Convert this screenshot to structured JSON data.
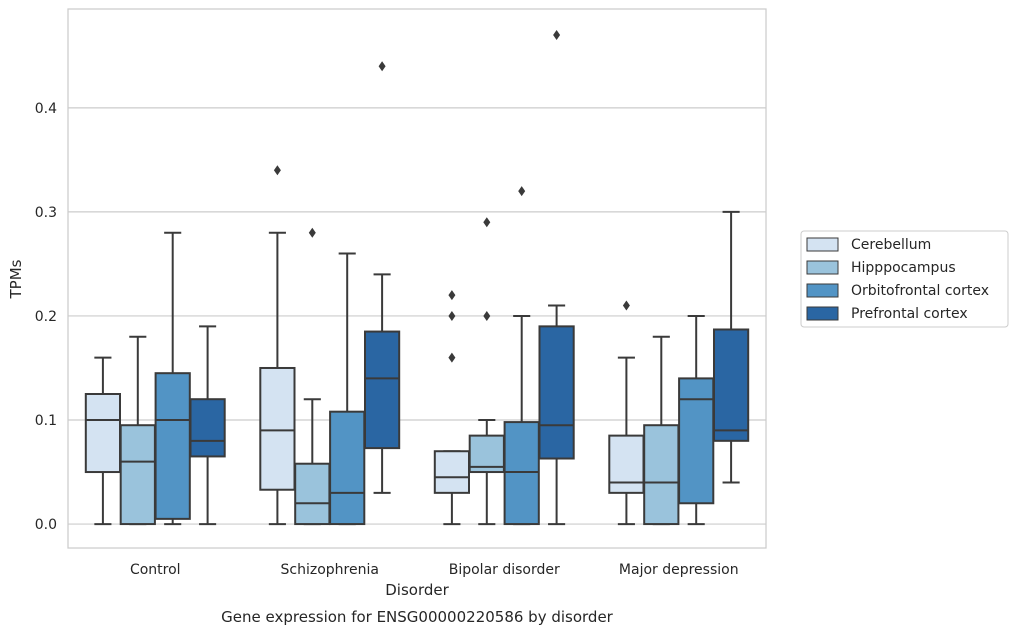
{
  "chart_data": {
    "type": "box",
    "caption": "Gene expression for ENSG00000220586 by disorder",
    "xlabel": "Disorder",
    "ylabel": "TPMs",
    "ylim": [
      -0.023,
      0.495
    ],
    "yticks": [
      0.0,
      0.1,
      0.2,
      0.3,
      0.4
    ],
    "ytick_labels": [
      "0.0",
      "0.1",
      "0.2",
      "0.3",
      "0.4"
    ],
    "grid": "horizontal",
    "legend_placement": "right",
    "categories": [
      "Control",
      "Schizophrenia",
      "Bipolar disorder",
      "Major depression"
    ],
    "series": [
      {
        "name": "Cerebellum",
        "color": "#d4e3f2",
        "boxes": [
          {
            "whislo": 0.0,
            "q1": 0.05,
            "med": 0.1,
            "q3": 0.125,
            "whishi": 0.16,
            "fliers": []
          },
          {
            "whislo": 0.0,
            "q1": 0.033,
            "med": 0.09,
            "q3": 0.15,
            "whishi": 0.28,
            "fliers": [
              0.34
            ]
          },
          {
            "whislo": 0.0,
            "q1": 0.03,
            "med": 0.045,
            "q3": 0.07,
            "whishi": 0.07,
            "fliers": [
              0.16,
              0.2,
              0.22
            ]
          },
          {
            "whislo": 0.0,
            "q1": 0.03,
            "med": 0.04,
            "q3": 0.085,
            "whishi": 0.16,
            "fliers": [
              0.21
            ]
          }
        ]
      },
      {
        "name": "Hipppocampus",
        "color": "#9ac3dc",
        "boxes": [
          {
            "whislo": 0.0,
            "q1": 0.0,
            "med": 0.06,
            "q3": 0.095,
            "whishi": 0.18,
            "fliers": []
          },
          {
            "whislo": 0.0,
            "q1": 0.0,
            "med": 0.02,
            "q3": 0.058,
            "whishi": 0.12,
            "fliers": [
              0.28
            ]
          },
          {
            "whislo": 0.0,
            "q1": 0.05,
            "med": 0.055,
            "q3": 0.085,
            "whishi": 0.1,
            "fliers": [
              0.2,
              0.29
            ]
          },
          {
            "whislo": 0.0,
            "q1": 0.0,
            "med": 0.04,
            "q3": 0.095,
            "whishi": 0.18,
            "fliers": []
          }
        ]
      },
      {
        "name": "Orbitofrontal cortex",
        "color": "#5294c5",
        "boxes": [
          {
            "whislo": 0.0,
            "q1": 0.005,
            "med": 0.1,
            "q3": 0.145,
            "whishi": 0.28,
            "fliers": []
          },
          {
            "whislo": 0.0,
            "q1": 0.0,
            "med": 0.03,
            "q3": 0.108,
            "whishi": 0.26,
            "fliers": []
          },
          {
            "whislo": 0.0,
            "q1": 0.0,
            "med": 0.05,
            "q3": 0.098,
            "whishi": 0.2,
            "fliers": [
              0.32
            ]
          },
          {
            "whislo": 0.0,
            "q1": 0.02,
            "med": 0.12,
            "q3": 0.14,
            "whishi": 0.2,
            "fliers": []
          }
        ]
      },
      {
        "name": "Prefrontal cortex",
        "color": "#2a66a3",
        "boxes": [
          {
            "whislo": 0.0,
            "q1": 0.065,
            "med": 0.08,
            "q3": 0.12,
            "whishi": 0.19,
            "fliers": []
          },
          {
            "whislo": 0.03,
            "q1": 0.073,
            "med": 0.14,
            "q3": 0.185,
            "whishi": 0.24,
            "fliers": [
              0.44
            ]
          },
          {
            "whislo": 0.0,
            "q1": 0.063,
            "med": 0.095,
            "q3": 0.19,
            "whishi": 0.21,
            "fliers": [
              0.47
            ]
          },
          {
            "whislo": 0.04,
            "q1": 0.08,
            "med": 0.09,
            "q3": 0.187,
            "whishi": 0.3,
            "fliers": []
          }
        ]
      }
    ]
  }
}
